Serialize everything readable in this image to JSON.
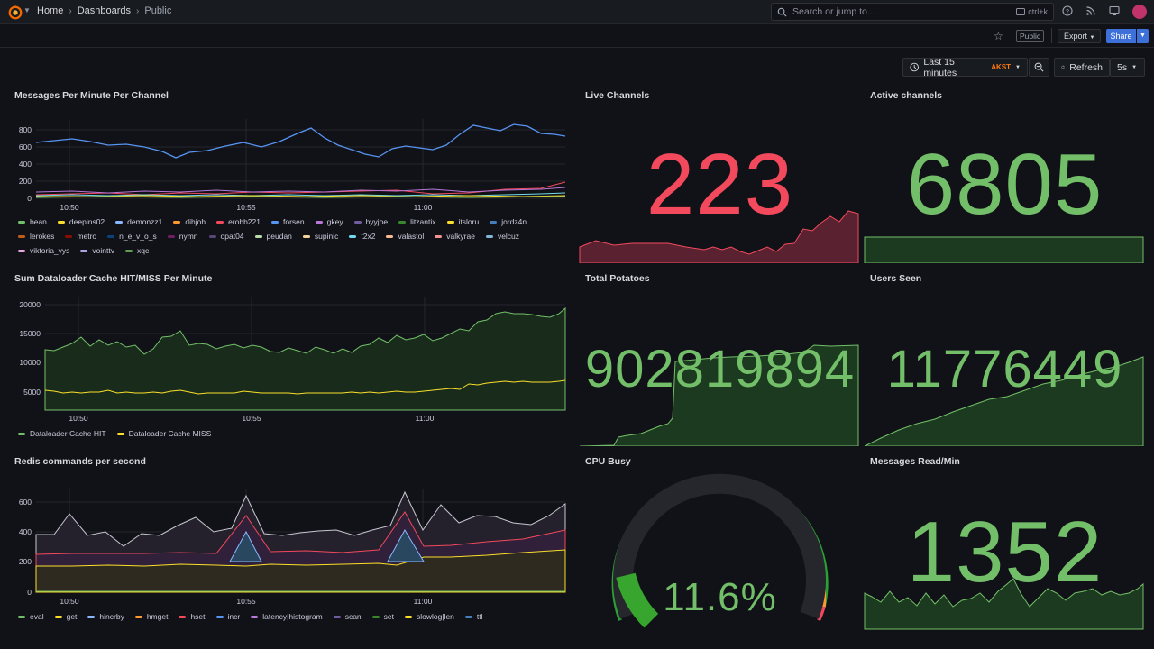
{
  "nav": {
    "breadcrumbs": [
      "Home",
      "Dashboards",
      "Public"
    ],
    "search_placeholder": "Search or jump to...",
    "search_shortcut": "ctrl+k",
    "public_badge": "Public",
    "export_label": "Export",
    "share_label": "Share"
  },
  "time_controls": {
    "range_label": "Last 15 minutes",
    "timezone": "AKST",
    "refresh_label": "Refresh",
    "refresh_interval": "5s"
  },
  "panels": {
    "messages_per_minute": {
      "title": "Messages Per Minute Per Channel",
      "y_ticks": [
        "800",
        "600",
        "400",
        "200",
        "0"
      ],
      "x_ticks": [
        "10:50",
        "10:55",
        "11:00"
      ],
      "legend": [
        {
          "name": "bean",
          "color": "#73bf69"
        },
        {
          "name": "deepins02",
          "color": "#fade2a"
        },
        {
          "name": "demonzz1",
          "color": "#8ab8ff"
        },
        {
          "name": "dihjoh",
          "color": "#ff9830"
        },
        {
          "name": "erobb221",
          "color": "#f2495c"
        },
        {
          "name": "forsen",
          "color": "#5794f2"
        },
        {
          "name": "gkey",
          "color": "#b877d9"
        },
        {
          "name": "hyyjoe",
          "color": "#705da0"
        },
        {
          "name": "litzantix",
          "color": "#37872d"
        },
        {
          "name": "itsloru",
          "color": "#fade2a"
        },
        {
          "name": "jordz4n",
          "color": "#447ebc"
        },
        {
          "name": "lerokes",
          "color": "#c15c17"
        },
        {
          "name": "metro",
          "color": "#890f02"
        },
        {
          "name": "n_e_v_o_s",
          "color": "#0a437c"
        },
        {
          "name": "nymn",
          "color": "#6d1f62"
        },
        {
          "name": "opat04",
          "color": "#584477"
        },
        {
          "name": "peudan",
          "color": "#b7dbab"
        },
        {
          "name": "supinic",
          "color": "#f4d598"
        },
        {
          "name": "t2x2",
          "color": "#70dbed"
        },
        {
          "name": "valastol",
          "color": "#f9ba8f"
        },
        {
          "name": "valkyrae",
          "color": "#f29191"
        },
        {
          "name": "velcuz",
          "color": "#82b5d8"
        },
        {
          "name": "viktoria_vys",
          "color": "#e5a8e2"
        },
        {
          "name": "vointtv",
          "color": "#aea2e0"
        },
        {
          "name": "xqc",
          "color": "#629e51"
        }
      ]
    },
    "live_channels": {
      "title": "Live Channels",
      "value": "223",
      "color": "#f2495c"
    },
    "active_channels": {
      "title": "Active channels",
      "value": "6805",
      "color": "#73bf69"
    },
    "dataloader": {
      "title": "Sum Dataloader Cache HIT/MISS Per Minute",
      "y_ticks": [
        "20000",
        "15000",
        "10000",
        "5000"
      ],
      "x_ticks": [
        "10:50",
        "10:55",
        "11:00"
      ],
      "legend": [
        {
          "name": "Dataloader Cache HIT",
          "color": "#73bf69"
        },
        {
          "name": "Dataloader Cache MISS",
          "color": "#fade2a"
        }
      ]
    },
    "total_potatoes": {
      "title": "Total Potatoes",
      "value": "902819894",
      "color": "#73bf69"
    },
    "users_seen": {
      "title": "Users Seen",
      "value": "11776449",
      "color": "#73bf69"
    },
    "redis": {
      "title": "Redis commands per second",
      "y_ticks": [
        "600",
        "400",
        "200",
        "0"
      ],
      "x_ticks": [
        "10:50",
        "10:55",
        "11:00"
      ],
      "legend": [
        {
          "name": "eval",
          "color": "#73bf69"
        },
        {
          "name": "get",
          "color": "#fade2a"
        },
        {
          "name": "hincrby",
          "color": "#8ab8ff"
        },
        {
          "name": "hmget",
          "color": "#ff9830"
        },
        {
          "name": "hset",
          "color": "#f2495c"
        },
        {
          "name": "incr",
          "color": "#5794f2"
        },
        {
          "name": "latency|histogram",
          "color": "#b877d9"
        },
        {
          "name": "scan",
          "color": "#705da0"
        },
        {
          "name": "set",
          "color": "#37872d"
        },
        {
          "name": "slowlog|len",
          "color": "#fade2a"
        },
        {
          "name": "ttl",
          "color": "#447ebc"
        }
      ]
    },
    "cpu_busy": {
      "title": "CPU Busy",
      "value": "11.6%",
      "fraction": 0.116,
      "color": "#73bf69"
    },
    "messages_read": {
      "title": "Messages Read/Min",
      "value": "1352",
      "color": "#73bf69"
    }
  }
}
